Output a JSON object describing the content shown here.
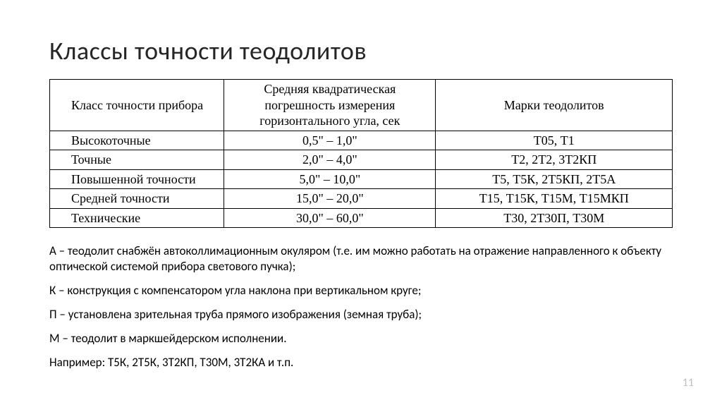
{
  "title": "Классы точности теодолитов",
  "table": {
    "columns": [
      "Класс\nточности прибора",
      "Средняя квадратическая погрешность измерения   горизонтального угла, сек",
      "Марки теодолитов"
    ],
    "rows": [
      [
        "Высокоточные",
        "0,5\" – 1,0\"",
        "Т05, Т1"
      ],
      [
        "Точные",
        "2,0\" – 4,0\"",
        "Т2, 2Т2, 3Т2КП"
      ],
      [
        "Повышенной точности",
        "5,0\" – 10,0\"",
        "Т5, Т5К, 2Т5КП, 2Т5А"
      ],
      [
        "Средней точности",
        "15,0\" – 20,0\"",
        "Т15, Т15К, Т15М, Т15МКП"
      ],
      [
        "Технические",
        "30,0\" – 60,0\"",
        "Т30, 2Т30П, Т30М"
      ]
    ]
  },
  "notes": [
    "А – теодолит снабжён автоколлимационным окуляром (т.е. им можно работать на отражение направленного к объекту оптической системой прибора светового пучка);",
    "К – конструкция с компенсатором угла наклона при вертикальном круге;",
    "П – установлена зрительная труба прямого изображения (земная труба);",
    "М – теодолит в маркшейдерском исполнении.",
    "Например: Т5К, 2Т5К, 3Т2КП, Т30М, 3Т2КА и т.п."
  ],
  "page_number": "11",
  "colors": {
    "background": "#ffffff",
    "text": "#000000",
    "title": "#262626",
    "page_num": "#bfbfbf",
    "border": "#000000"
  },
  "typography": {
    "title_fontsize": 36,
    "table_fontsize": 18,
    "notes_fontsize": 17,
    "table_font": "Times New Roman",
    "body_font": "Calibri"
  }
}
